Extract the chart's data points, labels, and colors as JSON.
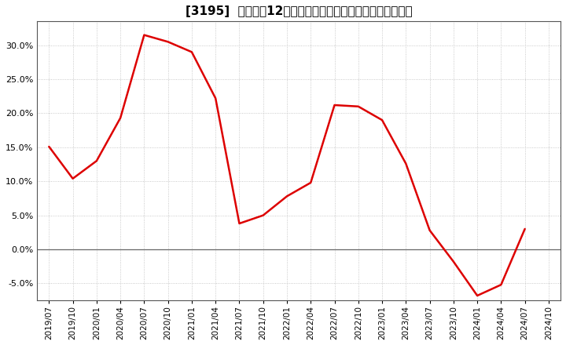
{
  "title": "[3195]  売上高の12か月移動合計の対前年同期増減率の推移",
  "line_color": "#dd0000",
  "background_color": "#ffffff",
  "plot_bg_color": "#ffffff",
  "grid_color": "#bbbbbb",
  "zero_line_color": "#666666",
  "spine_color": "#555555",
  "ylim": [
    -0.075,
    0.335
  ],
  "yticks": [
    -0.05,
    0.0,
    0.05,
    0.1,
    0.15,
    0.2,
    0.25,
    0.3
  ],
  "dates": [
    "2019/07",
    "2019/10",
    "2020/01",
    "2020/04",
    "2020/07",
    "2020/10",
    "2021/01",
    "2021/04",
    "2021/07",
    "2021/10",
    "2022/01",
    "2022/04",
    "2022/07",
    "2022/10",
    "2023/01",
    "2023/04",
    "2023/07",
    "2023/10",
    "2024/01",
    "2024/04",
    "2024/07",
    "2024/10"
  ],
  "values": [
    0.151,
    0.104,
    0.13,
    0.193,
    0.315,
    0.305,
    0.29,
    0.222,
    0.038,
    0.05,
    0.078,
    0.098,
    0.212,
    0.21,
    0.19,
    0.126,
    0.028,
    -0.018,
    -0.068,
    -0.052,
    0.03,
    null
  ],
  "title_fontsize": 11,
  "tick_fontsize": 8,
  "linewidth": 1.8
}
